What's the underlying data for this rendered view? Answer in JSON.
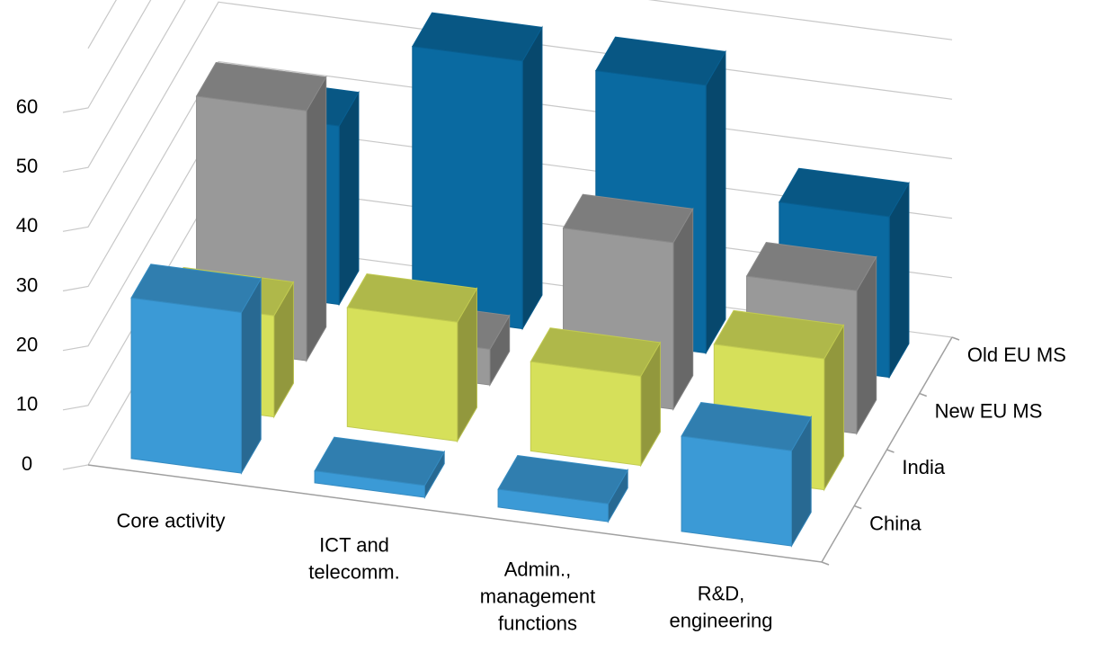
{
  "chart_data": {
    "type": "bar3d",
    "categories": [
      [
        "Core activity"
      ],
      [
        "ICT and",
        "telecomm."
      ],
      [
        "Admin.,",
        "management",
        "functions"
      ],
      [
        "R&D,",
        "engineering"
      ]
    ],
    "series": [
      {
        "name": "China",
        "color": "#3b9ad6",
        "values": [
          27,
          2,
          3,
          16
        ]
      },
      {
        "name": "India",
        "color": "#d6e05a",
        "values": [
          17,
          20,
          15,
          22
        ]
      },
      {
        "name": "New EU MS",
        "color": "#999999",
        "values": [
          42,
          6,
          28,
          24
        ]
      },
      {
        "name": "Old EU MS",
        "color": "#0a6aa1",
        "values": [
          30,
          45,
          45,
          27
        ]
      }
    ],
    "ylim": [
      0,
      70
    ],
    "yticks": [
      0,
      10,
      20,
      30,
      40,
      50,
      60
    ],
    "grid": true
  }
}
